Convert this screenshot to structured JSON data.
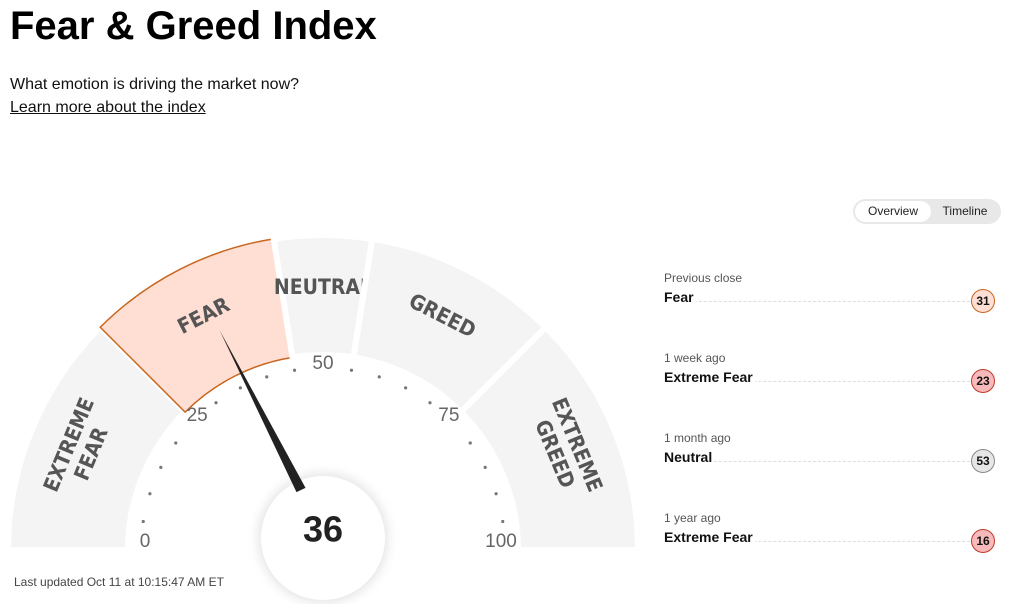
{
  "header": {
    "title": "Fear & Greed Index",
    "subtitle": "What emotion is driving the market now?",
    "link": "Learn more about the index"
  },
  "tabs": [
    "Overview",
    "Timeline"
  ],
  "gauge": {
    "value": 36,
    "ticks": [
      0,
      25,
      50,
      75,
      100
    ],
    "zones": [
      {
        "label": [
          "EXTREME",
          "FEAR"
        ],
        "from": 0,
        "to": 25,
        "color": "#f7b9b9",
        "border": "#c0392b"
      },
      {
        "label": [
          "FEAR"
        ],
        "from": 25,
        "to": 45,
        "color": "#ffdfd4",
        "border": "#c8661e"
      },
      {
        "label": [
          "NEUTRAL"
        ],
        "from": 45,
        "to": 55,
        "color": "#e6e6e6",
        "border": "#888888"
      },
      {
        "label": [
          "GREED"
        ],
        "from": 55,
        "to": 75,
        "color": "#cdeacf",
        "border": "#2e8b57"
      },
      {
        "label": [
          "EXTREME",
          "GREED"
        ],
        "from": 75,
        "to": 100,
        "color": "#a8dcae",
        "border": "#1e6b3a"
      }
    ]
  },
  "updated": "Last updated Oct 11 at 10:15:47 AM ET",
  "history": [
    {
      "period": "Previous close",
      "rating": "Fear",
      "value": 31
    },
    {
      "period": "1 week ago",
      "rating": "Extreme Fear",
      "value": 23
    },
    {
      "period": "1 month ago",
      "rating": "Neutral",
      "value": 53
    },
    {
      "period": "1 year ago",
      "rating": "Extreme Fear",
      "value": 16
    }
  ]
}
